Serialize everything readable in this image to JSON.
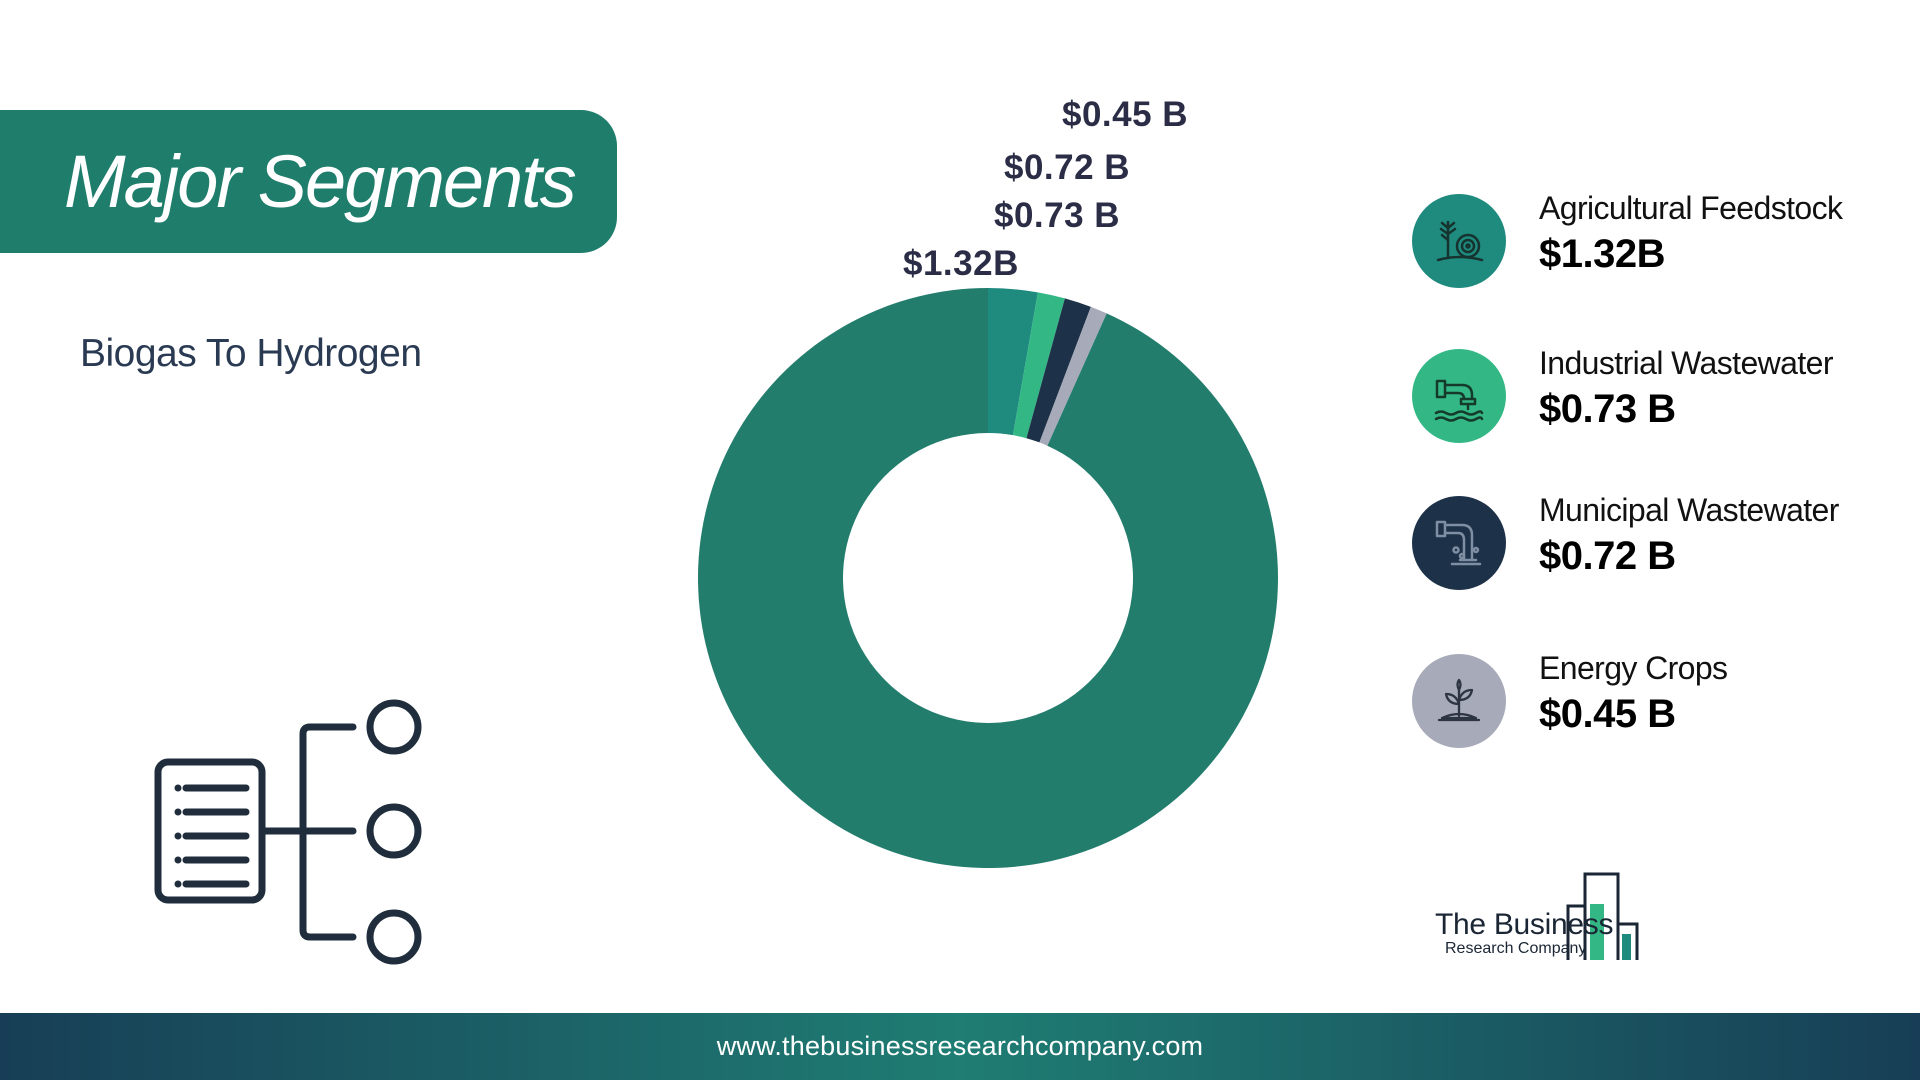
{
  "header": {
    "title": "Major Segments"
  },
  "subtitle": "Biogas To Hydrogen",
  "chart_data": {
    "type": "pie",
    "donut": true,
    "categories": [
      "Agricultural Feedstock",
      "Industrial Wastewater",
      "Municipal Wastewater",
      "Energy Crops"
    ],
    "values": [
      1.32,
      0.73,
      0.72,
      0.45
    ],
    "units": "USD billion",
    "data_labels": [
      "$1.32B",
      "$0.73 B",
      "$0.72 B",
      "$0.45 B"
    ],
    "colors": [
      "#1f8a7e",
      "#33b885",
      "#1d3148",
      "#a7aab8"
    ],
    "remainder_color": "#237d6d",
    "legend_position": "right"
  },
  "legend": [
    {
      "name": "Agricultural Feedstock",
      "value": "$1.32B",
      "color": "#1f8a7e",
      "icon": "agriculture-feedstock-icon"
    },
    {
      "name": "Industrial Wastewater",
      "value": "$0.73 B",
      "color": "#33b885",
      "icon": "industrial-pipe-icon"
    },
    {
      "name": "Municipal Wastewater",
      "value": "$0.72 B",
      "color": "#1d3148",
      "icon": "municipal-sewage-icon"
    },
    {
      "name": "Energy Crops",
      "value": "$0.45 B",
      "color": "#a7aab8",
      "icon": "plant-sprout-icon"
    }
  ],
  "logo": {
    "line1": "The Business",
    "line2": "Research Company"
  },
  "footer": {
    "url": "www.thebusinessresearchcompany.com"
  }
}
